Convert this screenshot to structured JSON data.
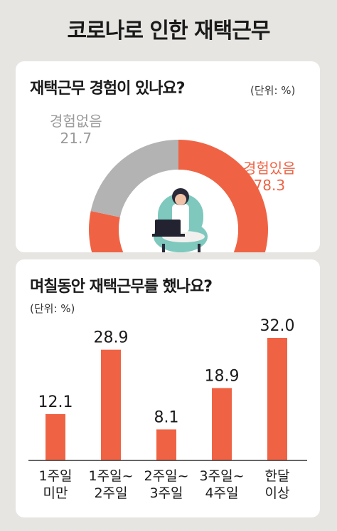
{
  "title": "코로나로 인한 재택근무",
  "colors": {
    "accent": "#ef6344",
    "gray": "#b3b3b3",
    "background": "#e6e5e1"
  },
  "chart_data": [
    {
      "type": "pie",
      "title": "재택근무 경험이 있나요?",
      "unit": "(단위: %)",
      "slices": [
        {
          "label": "경험있음",
          "value": 78.3,
          "value_text": "78.3",
          "color": "#ef6344"
        },
        {
          "label": "경험없음",
          "value": 21.7,
          "value_text": "21.7",
          "color": "#b3b3b3"
        }
      ]
    },
    {
      "type": "bar",
      "title": "며칠동안 재택근무를 했나요?",
      "unit": "(단위: %)",
      "categories": [
        [
          "1주일",
          "미만"
        ],
        [
          "1주일~",
          "2주일"
        ],
        [
          "2주일~",
          "3주일"
        ],
        [
          "3주일~",
          "4주일"
        ],
        [
          "한달",
          "이상"
        ]
      ],
      "values": [
        12.1,
        28.9,
        8.1,
        18.9,
        32.0
      ],
      "value_labels": [
        "12.1",
        "28.9",
        "8.1",
        "18.9",
        "32.0"
      ],
      "color": "#ef6344"
    }
  ]
}
